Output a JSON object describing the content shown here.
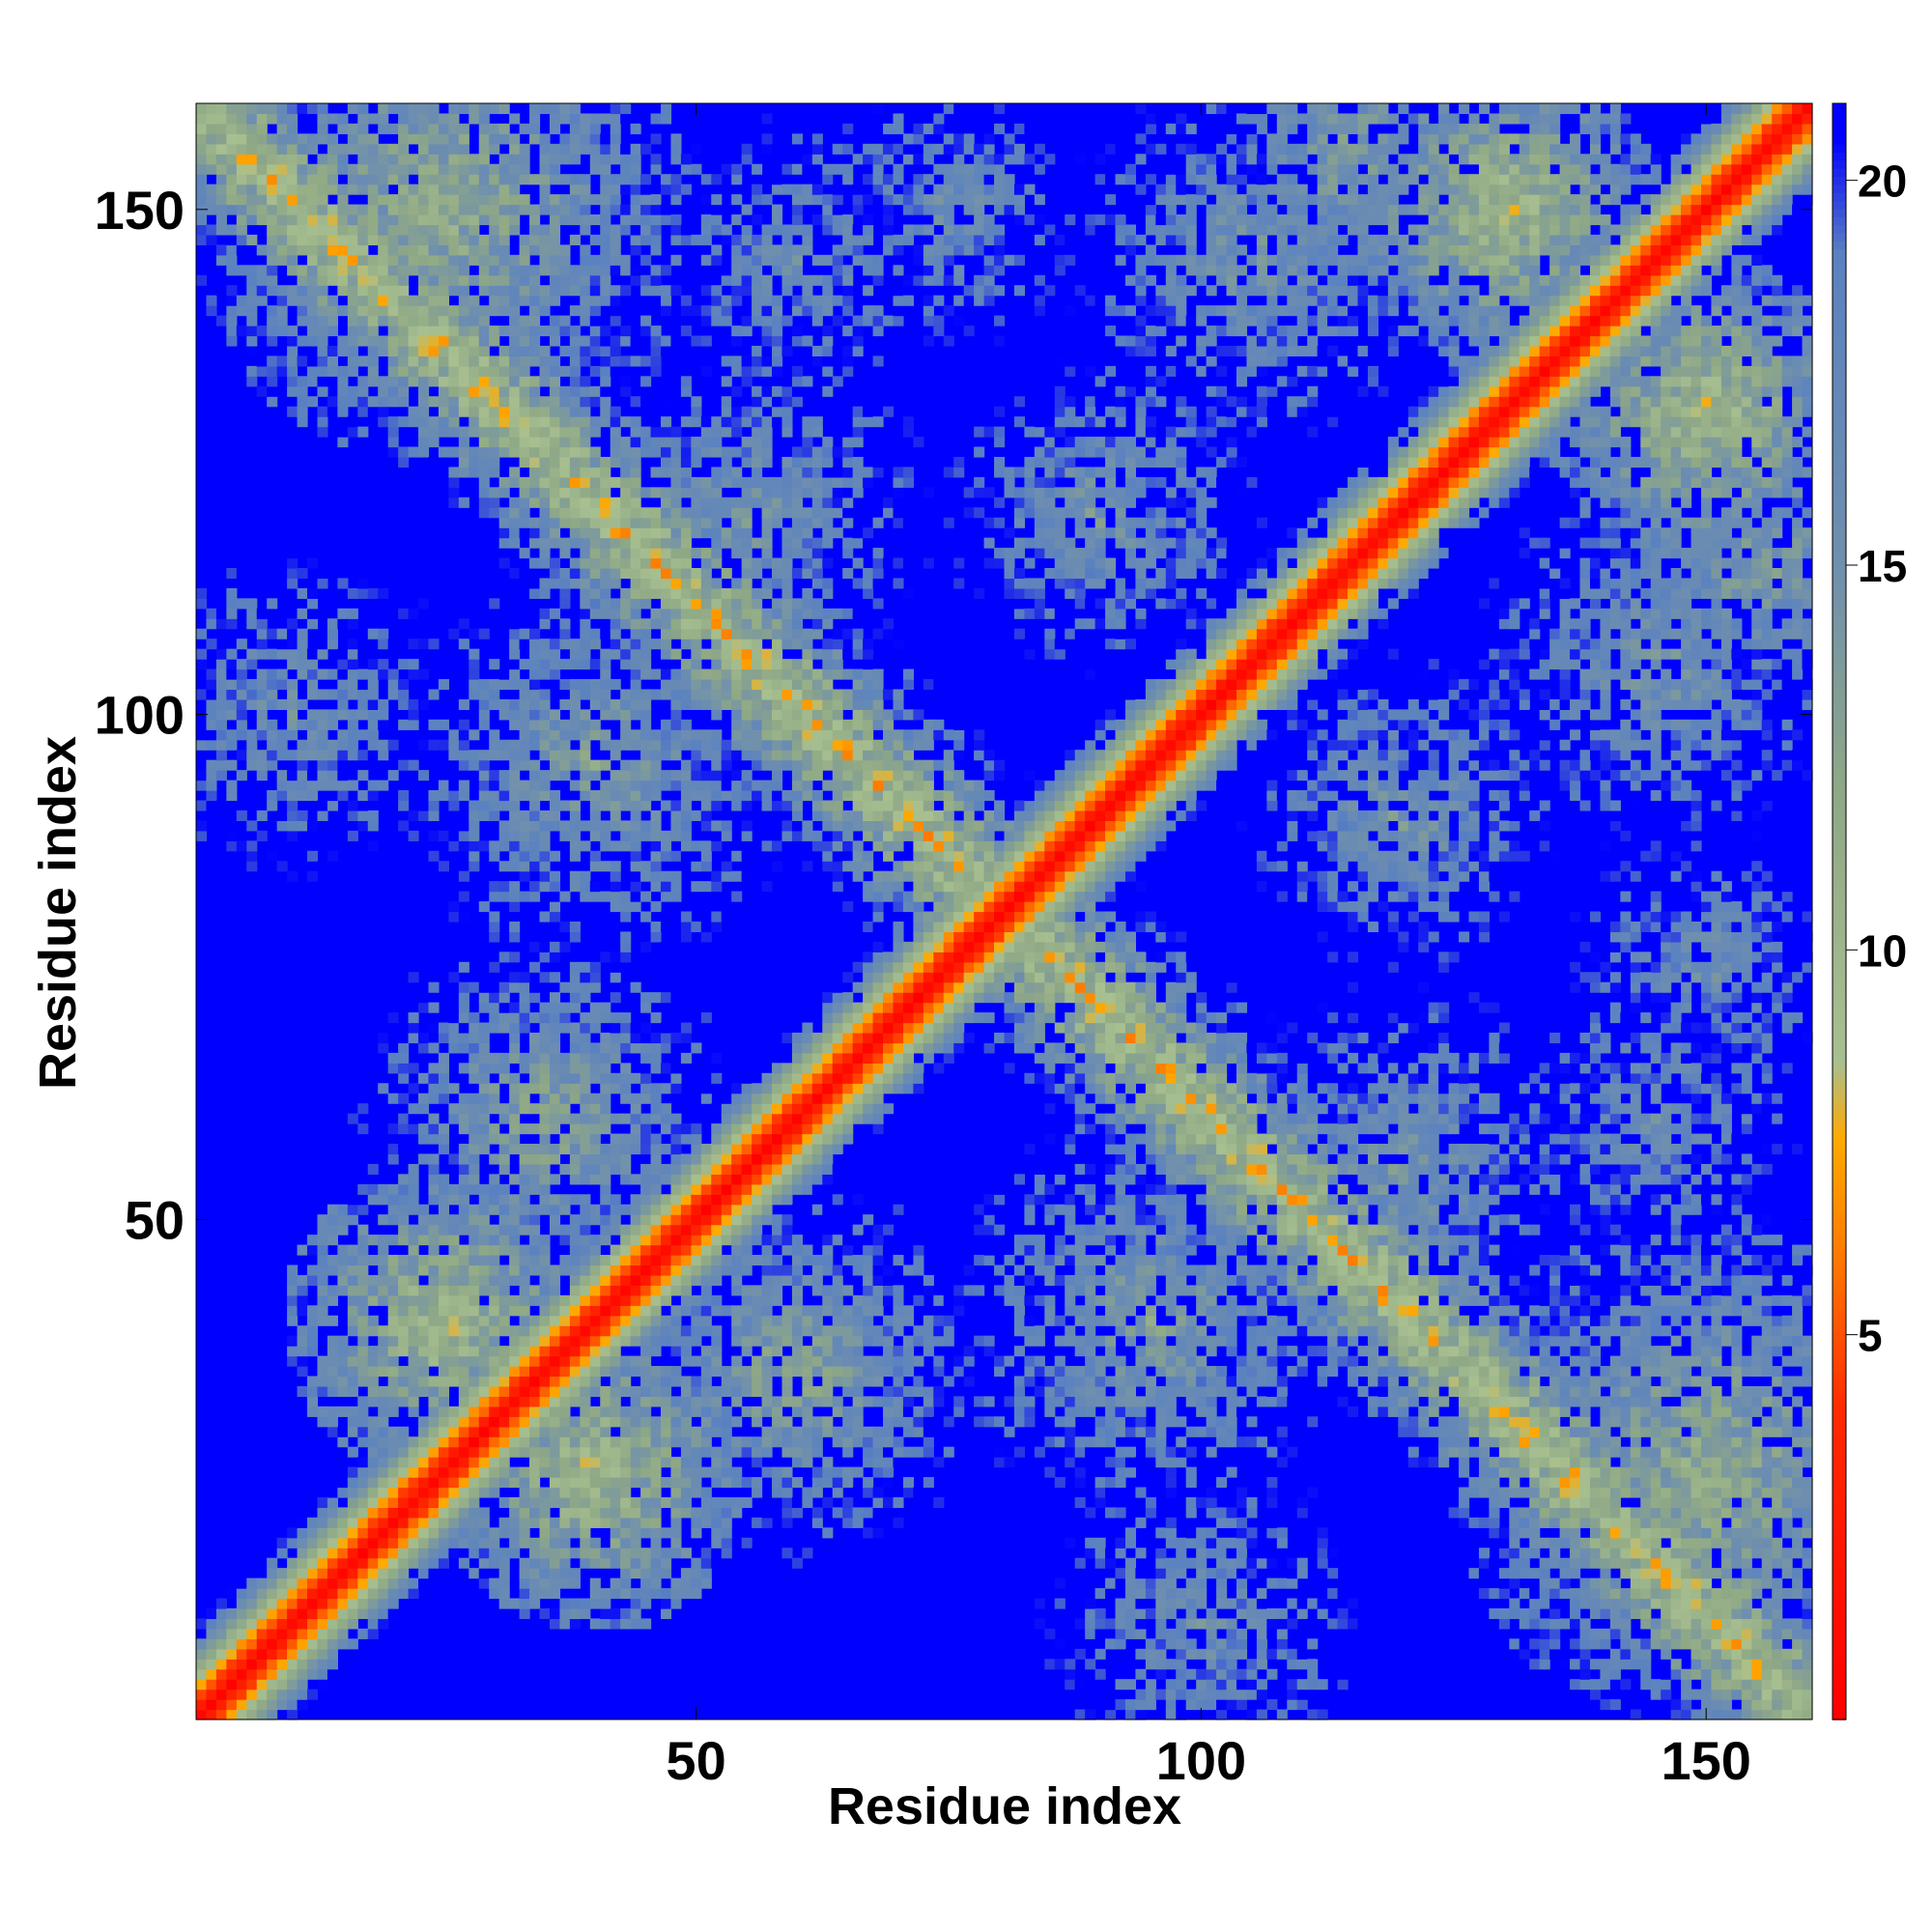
{
  "chart_data": {
    "type": "heatmap",
    "title": "",
    "xlabel": "Residue index",
    "ylabel": "Residue index",
    "n_residues": 160,
    "xlim": [
      1,
      160
    ],
    "ylim": [
      1,
      160
    ],
    "x_ticks": [
      50,
      100,
      150
    ],
    "y_ticks": [
      50,
      100,
      150
    ],
    "x_tick_labels": [
      "50",
      "100",
      "150"
    ],
    "y_tick_labels": [
      "50",
      "100",
      "150"
    ],
    "colorbar": {
      "range": [
        0,
        21
      ],
      "ticks": [
        5,
        10,
        15,
        20
      ],
      "tick_labels": [
        "5",
        "10",
        "15",
        "20"
      ],
      "placement": "right"
    },
    "colorscale": [
      {
        "value": 0,
        "color": "#ff0000"
      },
      {
        "value": 4,
        "color": "#ff2a00"
      },
      {
        "value": 6,
        "color": "#ff7a00"
      },
      {
        "value": 7.5,
        "color": "#ffaa00"
      },
      {
        "value": 8.5,
        "color": "#a8c090"
      },
      {
        "value": 12,
        "color": "#8fa886"
      },
      {
        "value": 15,
        "color": "#6f8fae"
      },
      {
        "value": 19,
        "color": "#5b82c0"
      },
      {
        "value": 20.5,
        "color": "#0000ff"
      },
      {
        "value": 21,
        "color": "#0000ff"
      }
    ],
    "background_color": "#0000ff",
    "structure": {
      "description_values": "pairwise residue distance map; symmetric; diagonal band ~0 to 8",
      "main_diagonal_halfwidth": 8,
      "antidiagonal_center": 161,
      "antidiagonal_halfwidth": 12,
      "contact_patches": [
        {
          "i": 25,
          "j": 150,
          "r": 16,
          "v": 9
        },
        {
          "i": 40,
          "j": 95,
          "r": 14,
          "v": 11
        },
        {
          "i": 55,
          "j": 120,
          "r": 14,
          "v": 12
        },
        {
          "i": 60,
          "j": 145,
          "r": 12,
          "v": 13
        },
        {
          "i": 35,
          "j": 60,
          "r": 12,
          "v": 10
        },
        {
          "i": 25,
          "j": 40,
          "r": 10,
          "v": 7
        },
        {
          "i": 10,
          "j": 100,
          "r": 14,
          "v": 13
        },
        {
          "i": 105,
          "j": 145,
          "r": 14,
          "v": 12
        },
        {
          "i": 115,
          "j": 155,
          "r": 12,
          "v": 11
        },
        {
          "i": 75,
          "j": 150,
          "r": 12,
          "v": 13
        },
        {
          "i": 90,
          "j": 120,
          "r": 12,
          "v": 12
        },
        {
          "i": 130,
          "j": 150,
          "r": 10,
          "v": 7
        }
      ]
    }
  }
}
